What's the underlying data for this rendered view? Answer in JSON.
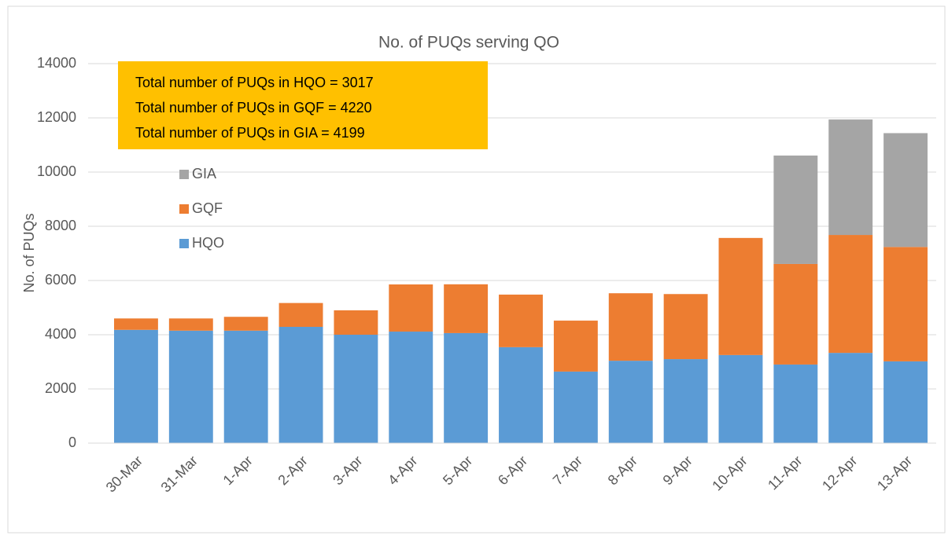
{
  "chart_data": {
    "type": "stacked_bar",
    "title": "No. of PUQs serving QO",
    "y_label": "No. of PUQs",
    "annotations": [
      "Total number of PUQs in HQO = 3017",
      "Total number of PUQs in GQF = 4220",
      "Total number of PUQs in GIA = 4199"
    ],
    "categories": [
      "30-Mar",
      "31-Mar",
      "1-Apr",
      "2-Apr",
      "3-Apr",
      "4-Apr",
      "5-Apr",
      "6-Apr",
      "7-Apr",
      "8-Apr",
      "9-Apr",
      "10-Apr",
      "11-Apr",
      "12-Apr",
      "13-Apr"
    ],
    "series": [
      {
        "name": "HQO",
        "color": "#5b9bd5",
        "values": [
          4180,
          4150,
          4150,
          4290,
          4000,
          4115,
          4060,
          3540,
          2640,
          3040,
          3100,
          3250,
          2900,
          3330,
          3017
        ]
      },
      {
        "name": "GQF",
        "color": "#ed7d31",
        "values": [
          420,
          450,
          510,
          880,
          900,
          1740,
          1800,
          1940,
          1880,
          2490,
          2400,
          4320,
          3710,
          4350,
          4220
        ]
      },
      {
        "name": "GIA",
        "color": "#a5a5a5",
        "values": [
          0,
          0,
          0,
          0,
          0,
          0,
          0,
          0,
          0,
          0,
          0,
          0,
          4000,
          4260,
          4199
        ]
      }
    ],
    "ylim": [
      0,
      14000
    ],
    "yticks": [
      0,
      2000,
      4000,
      6000,
      8000,
      10000,
      12000,
      14000
    ],
    "grid": true
  }
}
